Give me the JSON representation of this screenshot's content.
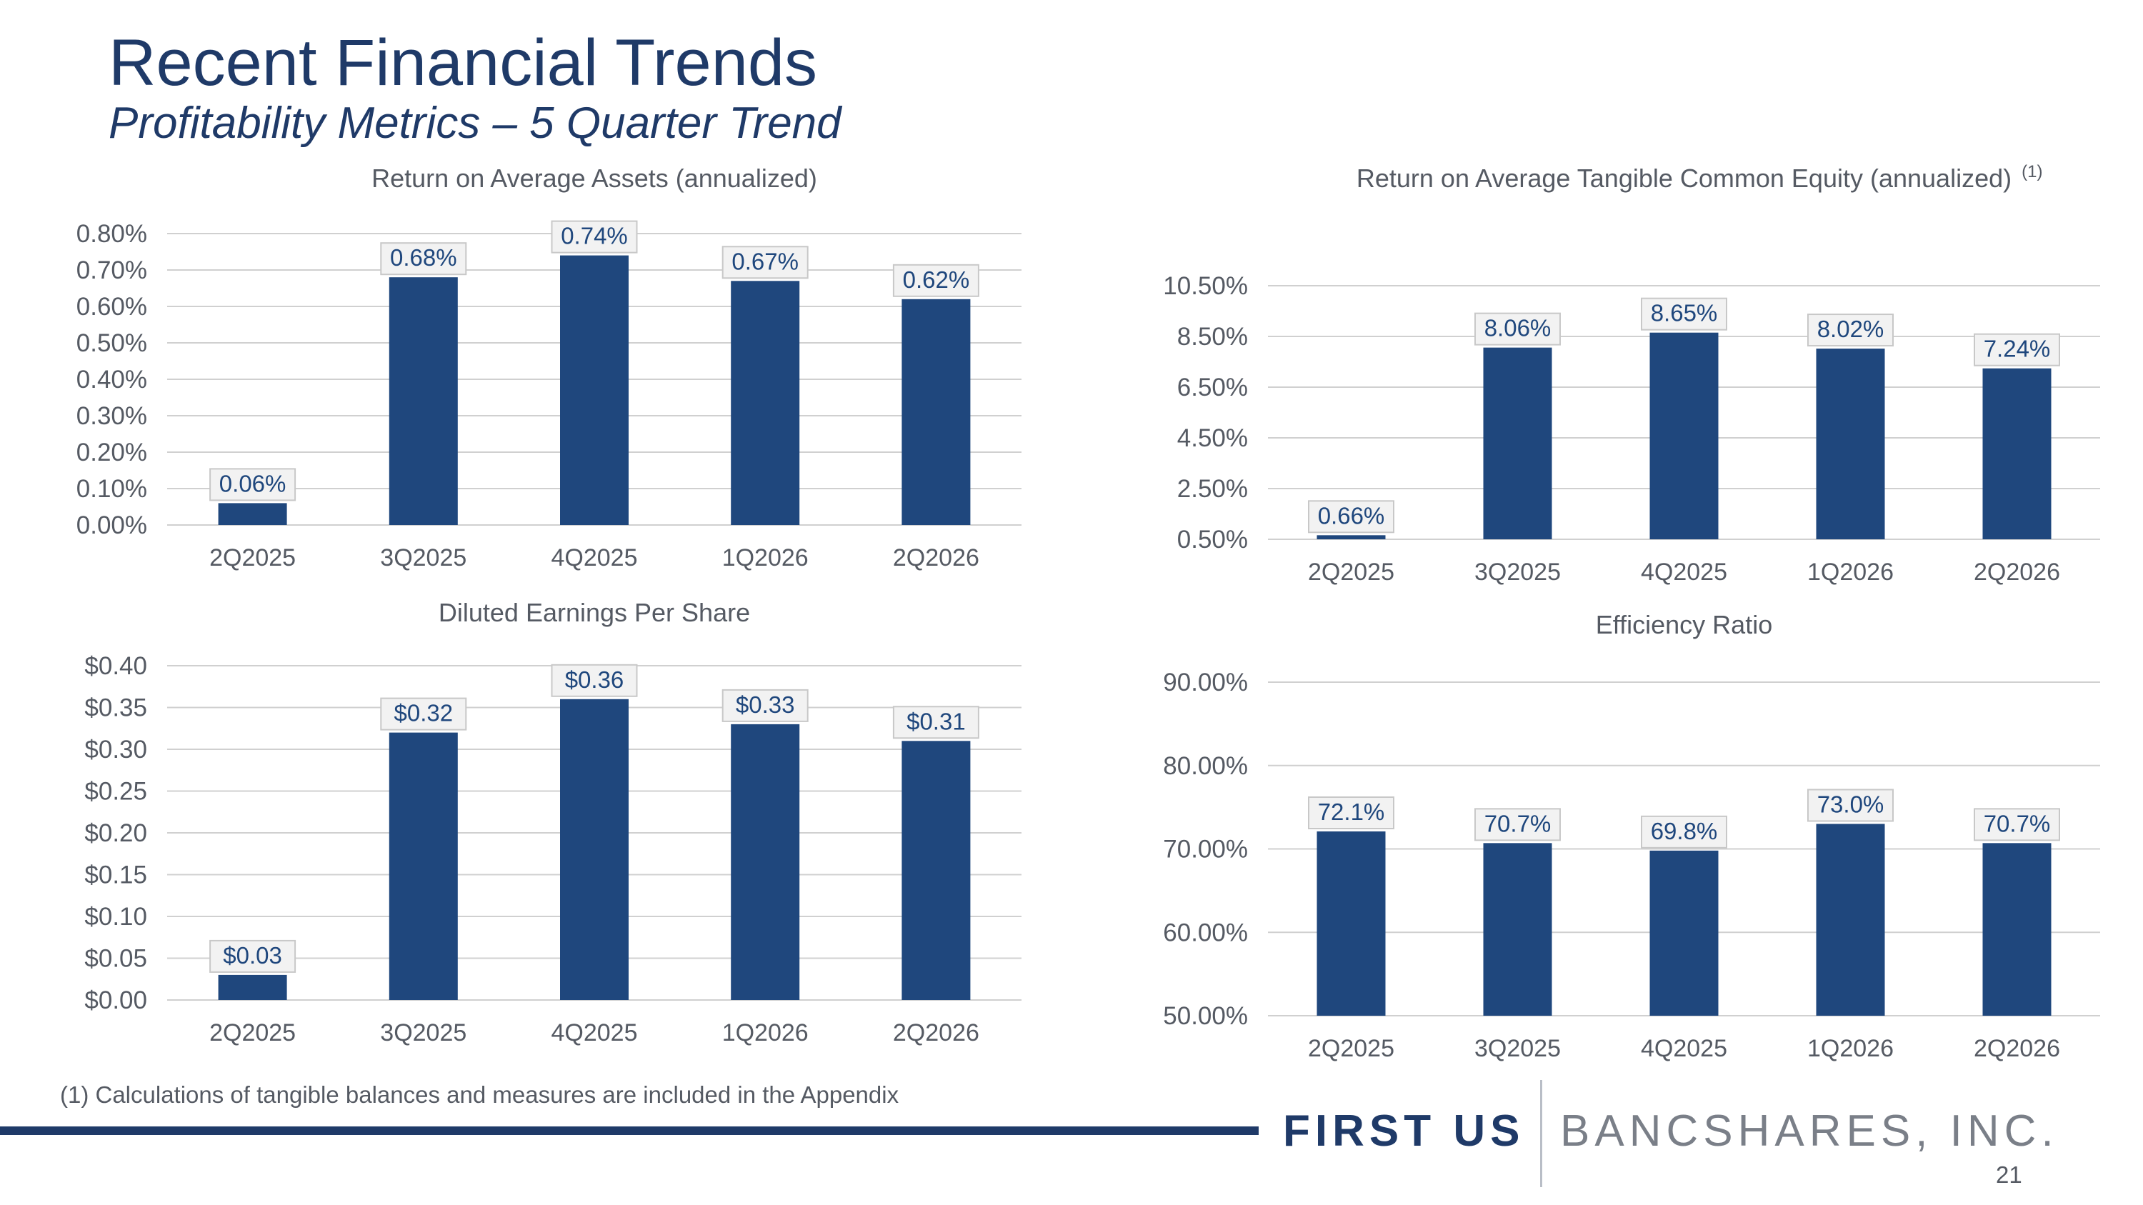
{
  "slide": {
    "title": "Recent Financial Trends",
    "subtitle": "Profitability Metrics – 5 Quarter Trend",
    "footnote": "(1) Calculations of tangible balances and measures are included in the Appendix",
    "logo": {
      "left_text": "FIRST US",
      "right_text": "BANCSHARES, INC."
    },
    "page_number": "21"
  },
  "colors": {
    "bar": "#1f477d",
    "title": "#1f3a68",
    "gridline": "#d0d0d0",
    "axis_text": "#555a63",
    "label_box_fill": "#f2f2f2",
    "label_box_border": "#c8c8c8",
    "label_text": "#1f477d"
  },
  "chart_data": [
    {
      "id": "roaa",
      "type": "bar",
      "title": "Return on Average Assets (annualized)",
      "title_superscript": "",
      "categories": [
        "2Q2025",
        "3Q2025",
        "4Q2025",
        "1Q2026",
        "2Q2026"
      ],
      "values": [
        0.06,
        0.68,
        0.74,
        0.67,
        0.62
      ],
      "data_labels": [
        "0.06%",
        "0.68%",
        "0.74%",
        "0.67%",
        "0.62%"
      ],
      "ylim": [
        0,
        0.8
      ],
      "yticks": [
        0,
        0.1,
        0.2,
        0.3,
        0.4,
        0.5,
        0.6,
        0.7,
        0.8
      ],
      "ytick_labels": [
        "0.00%",
        "0.10%",
        "0.20%",
        "0.30%",
        "0.40%",
        "0.50%",
        "0.60%",
        "0.70%",
        "0.80%"
      ],
      "grid": true
    },
    {
      "id": "rotce",
      "type": "bar",
      "title": "Return on Average Tangible Common Equity (annualized)",
      "title_superscript": "(1)",
      "categories": [
        "2Q2025",
        "3Q2025",
        "4Q2025",
        "1Q2026",
        "2Q2026"
      ],
      "values": [
        0.66,
        8.06,
        8.65,
        8.02,
        7.24
      ],
      "data_labels": [
        "0.66%",
        "8.06%",
        "8.65%",
        "8.02%",
        "7.24%"
      ],
      "ylim": [
        0.5,
        10.5
      ],
      "yticks": [
        0.5,
        2.5,
        4.5,
        6.5,
        8.5,
        10.5
      ],
      "ytick_labels": [
        "0.50%",
        "2.50%",
        "4.50%",
        "6.50%",
        "8.50%",
        "10.50%"
      ],
      "grid": true
    },
    {
      "id": "eps",
      "type": "bar",
      "title": "Diluted Earnings Per Share",
      "title_superscript": "",
      "categories": [
        "2Q2025",
        "3Q2025",
        "4Q2025",
        "1Q2026",
        "2Q2026"
      ],
      "values": [
        0.03,
        0.32,
        0.36,
        0.33,
        0.31
      ],
      "data_labels": [
        "$0.03",
        "$0.32",
        "$0.36",
        "$0.33",
        "$0.31"
      ],
      "ylim": [
        0,
        0.4
      ],
      "yticks": [
        0,
        0.05,
        0.1,
        0.15,
        0.2,
        0.25,
        0.3,
        0.35,
        0.4
      ],
      "ytick_labels": [
        "$0.00",
        "$0.05",
        "$0.10",
        "$0.15",
        "$0.20",
        "$0.25",
        "$0.30",
        "$0.35",
        "$0.40"
      ],
      "grid": true
    },
    {
      "id": "efficiency",
      "type": "bar",
      "title": "Efficiency Ratio",
      "title_superscript": "",
      "categories": [
        "2Q2025",
        "3Q2025",
        "4Q2025",
        "1Q2026",
        "2Q2026"
      ],
      "values": [
        72.1,
        70.7,
        69.8,
        73.0,
        70.7
      ],
      "data_labels": [
        "72.1%",
        "70.7%",
        "69.8%",
        "73.0%",
        "70.7%"
      ],
      "ylim": [
        50,
        90
      ],
      "yticks": [
        50,
        60,
        70,
        80,
        90
      ],
      "ytick_labels": [
        "50.00%",
        "60.00%",
        "70.00%",
        "80.00%",
        "90.00%"
      ],
      "grid": true
    }
  ]
}
